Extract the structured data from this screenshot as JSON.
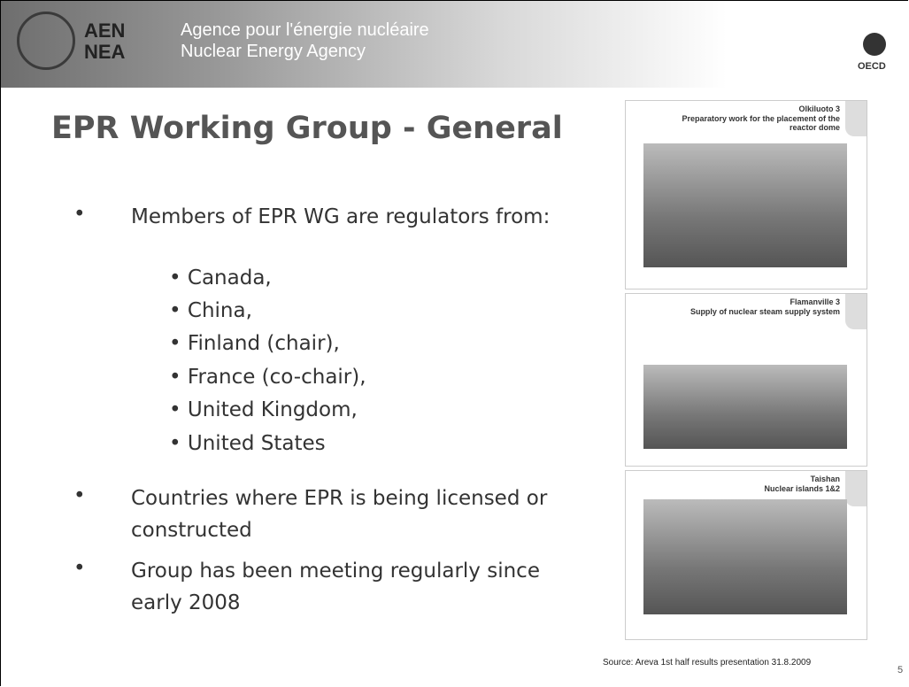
{
  "header": {
    "logo": [
      "AEN",
      "NEA"
    ],
    "agency_fr": "Agence pour l'énergie nucléaire",
    "agency_en": "Nuclear Energy Agency",
    "org": "OECD"
  },
  "title": "EPR Working Group - General",
  "bullets": [
    {
      "text": "Members of EPR WG are regulators from:",
      "items": [
        "Canada,",
        "China,",
        "Finland (chair),",
        "France (co-chair),",
        "United Kingdom,",
        "United States"
      ]
    },
    {
      "text": "Countries where EPR is being licensed or constructed"
    },
    {
      "text": "Group has been meeting regularly since early 2008"
    }
  ],
  "thumbnails": [
    {
      "site": "Olkiluoto 3",
      "caption": "Preparatory work for the placement of the reactor dome"
    },
    {
      "site": "Flamanville 3",
      "caption": "Supply of nuclear steam supply system"
    },
    {
      "site": "Taishan",
      "caption": "Nuclear islands 1&2"
    }
  ],
  "source": "Source: Areva 1st half results presentation 31.8.2009",
  "page_number": "5"
}
